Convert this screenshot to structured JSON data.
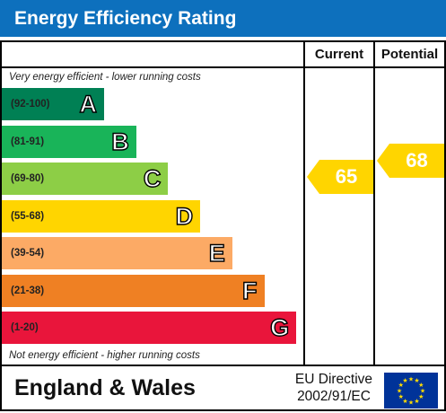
{
  "header": {
    "title": "Energy Efficiency Rating"
  },
  "columns": {
    "current": "Current",
    "potential": "Potential"
  },
  "notes": {
    "top": "Very energy efficient - lower running costs",
    "bottom": "Not energy efficient - higher running costs"
  },
  "chart_data": {
    "type": "bar",
    "bands": [
      {
        "range": "(92-100)",
        "letter": "A",
        "color": "#008054"
      },
      {
        "range": "(81-91)",
        "letter": "B",
        "color": "#19b459"
      },
      {
        "range": "(69-80)",
        "letter": "C",
        "color": "#8dce46"
      },
      {
        "range": "(55-68)",
        "letter": "D",
        "color": "#ffd500"
      },
      {
        "range": "(39-54)",
        "letter": "E",
        "color": "#fcaa65"
      },
      {
        "range": "(21-38)",
        "letter": "F",
        "color": "#ef8023"
      },
      {
        "range": "(1-20)",
        "letter": "G",
        "color": "#e9153b"
      }
    ],
    "current": {
      "value": "65",
      "band": "D",
      "color": "#ffd500"
    },
    "potential": {
      "value": "68",
      "band": "D",
      "color": "#ffd500"
    }
  },
  "footer": {
    "region": "England & Wales",
    "directive_line1": "EU Directive",
    "directive_line2": "2002/91/EC",
    "flag_icon": "eu-flag-icon",
    "flag_color": "#003399",
    "star_color": "#ffdd00"
  }
}
